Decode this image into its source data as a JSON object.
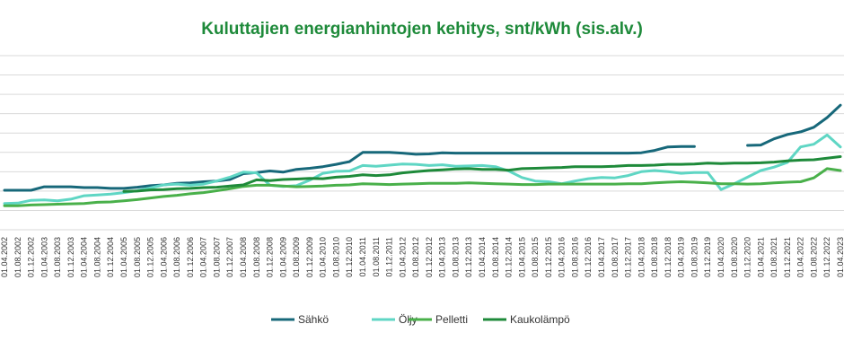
{
  "chart_data": {
    "type": "line",
    "title": "Kuluttajien energianhintojen kehitys, snt/kWh (sis.alv.)",
    "xlabel": "",
    "ylabel": "",
    "ylim": [
      0,
      45
    ],
    "grid": true,
    "legend_position": "bottom",
    "y_axis_labels_visible": false,
    "x": [
      "01.04.2002",
      "01.08.2002",
      "01.12.2002",
      "01.04.2003",
      "01.08.2003",
      "01.12.2003",
      "01.04.2004",
      "01.08.2004",
      "01.12.2004",
      "01.04.2005",
      "01.08.2005",
      "01.12.2005",
      "01.04.2006",
      "01.08.2006",
      "01.12.2006",
      "01.04.2007",
      "01.08.2007",
      "01.12.2007",
      "01.04.2008",
      "01.08.2008",
      "01.12.2008",
      "01.04.2009",
      "01.08.2009",
      "01.12.2009",
      "01.04.2010",
      "01.08.2010",
      "01.12.2010",
      "01.04.2011",
      "01.08.2011",
      "01.12.2011",
      "01.04.2012",
      "01.08.2012",
      "01.12.2012",
      "01.04.2013",
      "01.08.2013",
      "01.12.2013",
      "01.04.2014",
      "01.08.2014",
      "01.12.2014",
      "01.04.2015",
      "01.08.2015",
      "01.12.2015",
      "01.04.2016",
      "01.08.2016",
      "01.12.2016",
      "01.04.2017",
      "01.08.2017",
      "01.12.2017",
      "01.04.2018",
      "01.08.2018",
      "01.12.2018",
      "01.04.2019",
      "01.08.2019",
      "01.12.2019",
      "01.04.2020",
      "01.08.2020",
      "01.12.2020",
      "01.04.2021",
      "01.08.2021",
      "01.12.2021",
      "01.04.2022",
      "01.08.2022",
      "01.12.2022",
      "01.04.2023"
    ],
    "series": [
      {
        "name": "Sähkö",
        "color": "#17687a",
        "values": [
          10.2,
          10.2,
          10.2,
          11.1,
          11.1,
          11.1,
          10.9,
          10.9,
          10.7,
          10.7,
          11.0,
          11.4,
          11.6,
          12.0,
          12.1,
          12.4,
          12.6,
          13.0,
          14.5,
          14.8,
          15.2,
          14.9,
          15.6,
          15.9,
          16.3,
          16.9,
          17.6,
          20.0,
          20.0,
          20.0,
          19.8,
          19.5,
          19.6,
          19.9,
          19.8,
          19.8,
          19.8,
          19.8,
          19.8,
          19.8,
          19.8,
          19.8,
          19.8,
          19.8,
          19.8,
          19.8,
          19.8,
          19.8,
          19.9,
          20.5,
          21.4,
          21.5,
          21.5,
          null,
          null,
          null,
          21.8,
          21.9,
          23.5,
          24.6,
          25.3,
          26.5,
          29.0,
          32.2
        ]
      },
      {
        "name": "Öljy",
        "color": "#5fd6c4",
        "values": [
          6.8,
          6.9,
          7.6,
          7.7,
          7.5,
          7.9,
          8.8,
          9.0,
          9.2,
          9.6,
          10.1,
          10.8,
          11.6,
          11.8,
          11.5,
          11.8,
          12.6,
          13.6,
          14.9,
          14.7,
          11.5,
          11.2,
          11.4,
          12.8,
          14.6,
          15.1,
          15.2,
          16.6,
          16.4,
          16.7,
          17.0,
          16.9,
          16.6,
          16.8,
          16.4,
          16.5,
          16.6,
          16.3,
          15.2,
          13.5,
          12.6,
          12.4,
          11.9,
          12.6,
          13.2,
          13.5,
          13.4,
          14.0,
          15.0,
          15.3,
          15.0,
          14.6,
          14.8,
          14.8,
          10.4,
          11.9,
          13.6,
          15.3,
          16.2,
          17.4,
          21.4,
          22.1,
          24.5,
          21.4
        ]
      },
      {
        "name": "Pelletti",
        "color": "#49b04a",
        "values": [
          6.2,
          6.2,
          6.4,
          6.5,
          6.6,
          6.7,
          6.8,
          7.1,
          7.2,
          7.5,
          7.8,
          8.2,
          8.6,
          8.9,
          9.3,
          9.6,
          10.1,
          10.6,
          11.2,
          11.5,
          11.5,
          11.3,
          11.1,
          11.2,
          11.3,
          11.5,
          11.6,
          11.9,
          11.8,
          11.7,
          11.8,
          11.9,
          12.0,
          12.0,
          12.0,
          12.1,
          12.0,
          11.9,
          11.8,
          11.7,
          11.7,
          11.8,
          11.8,
          11.8,
          11.8,
          11.8,
          11.8,
          11.9,
          11.9,
          12.1,
          12.3,
          12.4,
          12.3,
          12.1,
          11.9,
          11.9,
          11.8,
          11.9,
          12.1,
          12.3,
          12.4,
          13.4,
          15.8,
          15.3
        ]
      },
      {
        "name": "Kaukolämpö",
        "color": "#1e8a3a",
        "values": [
          null,
          null,
          null,
          null,
          null,
          null,
          null,
          null,
          null,
          9.9,
          10.0,
          10.3,
          10.4,
          10.6,
          10.7,
          10.9,
          11.0,
          11.3,
          11.6,
          12.9,
          12.7,
          13.0,
          13.1,
          13.3,
          13.2,
          13.6,
          13.8,
          14.2,
          14.0,
          14.2,
          14.7,
          15.0,
          15.3,
          15.5,
          15.7,
          15.8,
          15.6,
          15.6,
          15.4,
          15.8,
          15.9,
          16.0,
          16.1,
          16.3,
          16.3,
          16.3,
          16.4,
          16.6,
          16.6,
          16.7,
          16.9,
          16.9,
          17.0,
          17.2,
          17.1,
          17.2,
          17.2,
          17.3,
          17.5,
          17.8,
          18.0,
          18.1,
          18.5,
          18.9
        ]
      }
    ]
  }
}
